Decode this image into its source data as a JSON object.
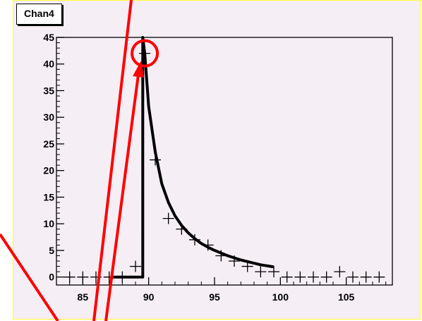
{
  "chart_data": {
    "type": "line",
    "title": "",
    "label_box": "Chan4",
    "xlabel": "",
    "ylabel": "",
    "xlim": [
      83,
      108.5
    ],
    "ylim": [
      -1.5,
      45
    ],
    "x_ticks": [
      85,
      90,
      95,
      100,
      105
    ],
    "y_ticks": [
      0,
      5,
      10,
      15,
      20,
      25,
      30,
      35,
      40,
      45
    ],
    "grid": false,
    "series": [
      {
        "kind": "points",
        "x": [
          84.0,
          85.0,
          86.0,
          87.0,
          88.0,
          89.0,
          89.7,
          90.5,
          91.5,
          92.5,
          93.5,
          94.5,
          95.5,
          96.5,
          97.5,
          98.5,
          99.5,
          100.5,
          101.5,
          102.5,
          103.5,
          104.5,
          105.5,
          106.5,
          107.5
        ],
        "y": [
          0,
          0,
          0,
          0,
          0,
          2,
          42,
          22,
          11,
          9,
          7,
          6,
          4,
          3,
          2,
          1,
          1,
          0,
          0,
          0,
          0,
          1,
          0,
          0,
          0
        ]
      },
      {
        "kind": "fit-curve",
        "x": [
          87.2,
          89.55,
          89.55,
          89.7,
          90.0,
          90.5,
          91.0,
          91.5,
          92.0,
          92.5,
          93.0,
          93.5,
          94.0,
          94.5,
          95.0,
          95.5,
          96.0,
          96.5,
          97.0,
          97.5,
          98.0,
          98.5,
          99.0,
          99.5
        ],
        "y": [
          0,
          0,
          45,
          42,
          32,
          23.5,
          17.5,
          14,
          11.5,
          9.7,
          8.3,
          7.2,
          6.3,
          5.6,
          5.0,
          4.5,
          4.0,
          3.6,
          3.2,
          2.9,
          2.6,
          2.3,
          2.1,
          1.9
        ]
      }
    ],
    "colors": {
      "annotation": "#ff0000",
      "frame_border": "#ffff33",
      "canvas_bg": "#f5eef5"
    }
  }
}
